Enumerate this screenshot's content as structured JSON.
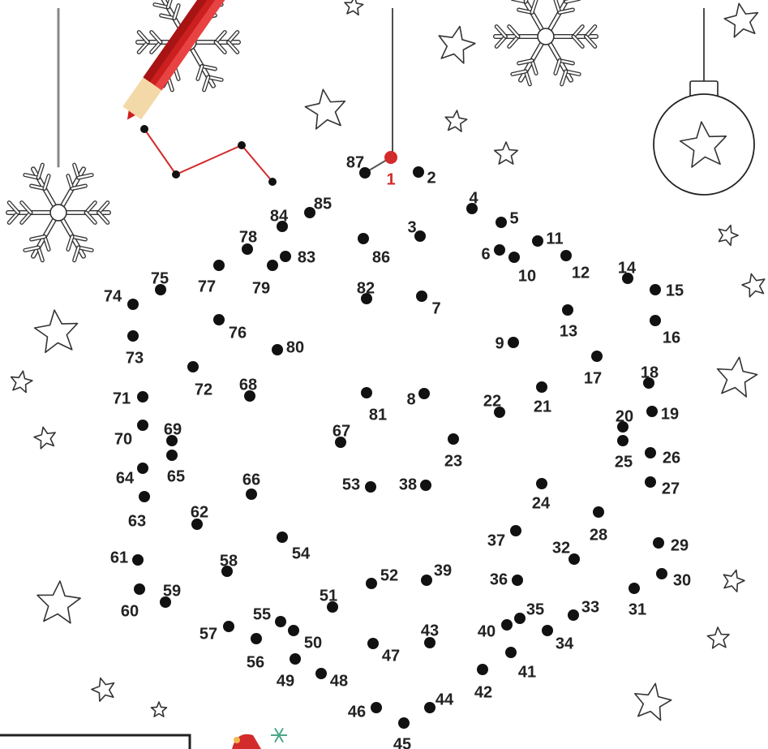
{
  "puzzle": {
    "type": "connect-the-dots",
    "connected_up_to": 4,
    "first_dot_number": 1
  },
  "colors": {
    "dot": "#111111",
    "label": "#222222",
    "start_dot": "#d32b2b",
    "drawn_line": "#d32b2b",
    "pencil_body": "#cc1f1f",
    "pencil_wood": "#f4d9a8",
    "outline": "#333333"
  },
  "dots": [
    {
      "n": "1"
    },
    {
      "n": "2"
    },
    {
      "n": "3"
    },
    {
      "n": "4"
    },
    {
      "n": "5"
    },
    {
      "n": "6"
    },
    {
      "n": "7"
    },
    {
      "n": "8"
    },
    {
      "n": "9"
    },
    {
      "n": "10"
    },
    {
      "n": "11"
    },
    {
      "n": "12"
    },
    {
      "n": "13"
    },
    {
      "n": "14"
    },
    {
      "n": "15"
    },
    {
      "n": "16"
    },
    {
      "n": "17"
    },
    {
      "n": "18"
    },
    {
      "n": "19"
    },
    {
      "n": "20"
    },
    {
      "n": "21"
    },
    {
      "n": "22"
    },
    {
      "n": "23"
    },
    {
      "n": "24"
    },
    {
      "n": "25"
    },
    {
      "n": "26"
    },
    {
      "n": "27"
    },
    {
      "n": "28"
    },
    {
      "n": "29"
    },
    {
      "n": "30"
    },
    {
      "n": "31"
    },
    {
      "n": "32"
    },
    {
      "n": "33"
    },
    {
      "n": "34"
    },
    {
      "n": "35"
    },
    {
      "n": "36"
    },
    {
      "n": "37"
    },
    {
      "n": "38"
    },
    {
      "n": "39"
    },
    {
      "n": "40"
    },
    {
      "n": "41"
    },
    {
      "n": "42"
    },
    {
      "n": "43"
    },
    {
      "n": "44"
    },
    {
      "n": "45"
    },
    {
      "n": "46"
    },
    {
      "n": "47"
    },
    {
      "n": "48"
    },
    {
      "n": "49"
    },
    {
      "n": "50"
    },
    {
      "n": "51"
    },
    {
      "n": "52"
    },
    {
      "n": "53"
    },
    {
      "n": "54"
    },
    {
      "n": "55"
    },
    {
      "n": "56"
    },
    {
      "n": "57"
    },
    {
      "n": "58"
    },
    {
      "n": "59"
    },
    {
      "n": "60"
    },
    {
      "n": "61"
    },
    {
      "n": "62"
    },
    {
      "n": "63"
    },
    {
      "n": "64"
    },
    {
      "n": "65"
    },
    {
      "n": "66"
    },
    {
      "n": "67"
    },
    {
      "n": "68"
    },
    {
      "n": "69"
    },
    {
      "n": "70"
    },
    {
      "n": "71"
    },
    {
      "n": "72"
    },
    {
      "n": "73"
    },
    {
      "n": "74"
    },
    {
      "n": "75"
    },
    {
      "n": "76"
    },
    {
      "n": "77"
    },
    {
      "n": "78"
    },
    {
      "n": "79"
    },
    {
      "n": "80"
    },
    {
      "n": "81"
    },
    {
      "n": "82"
    },
    {
      "n": "83"
    },
    {
      "n": "84"
    },
    {
      "n": "85"
    },
    {
      "n": "86"
    },
    {
      "n": "87"
    }
  ],
  "decorations": {
    "pencil_icon": "red-pencil-icon",
    "snowflake_icon": "snowflake-icon",
    "star_icon": "star-outline-icon",
    "ornament_icon": "christmas-ornament-icon",
    "santa_hat_icon": "santa-hat-icon"
  }
}
